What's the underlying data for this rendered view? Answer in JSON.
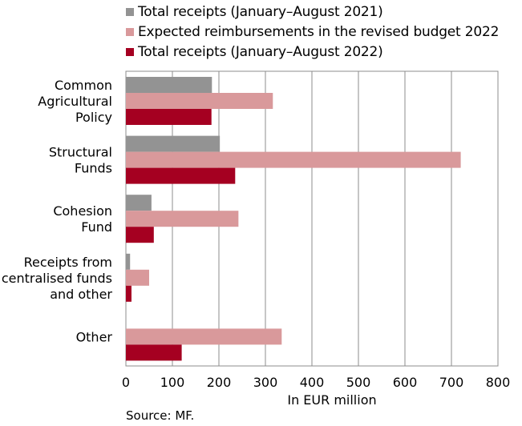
{
  "chart_data": {
    "type": "bar",
    "orientation": "horizontal",
    "categories": [
      [
        "Common",
        "Agricultural",
        "Policy"
      ],
      [
        "Structural",
        "Funds"
      ],
      [
        "Cohesion",
        "Fund"
      ],
      [
        "Receipts from",
        "centralised funds",
        "and other"
      ],
      [
        "Other"
      ]
    ],
    "series": [
      {
        "name": "Total receipts (January–August 2021)",
        "color": "#939393",
        "values": [
          185,
          202,
          55,
          9,
          0
        ]
      },
      {
        "name": "Expected reimbursements in the revised budget  2022",
        "color": "#d9999b",
        "values": [
          316,
          720,
          242,
          50,
          335
        ]
      },
      {
        "name": "Total receipts (January–August 2022)",
        "color": "#a50021",
        "values": [
          184,
          235,
          60,
          12,
          120
        ]
      }
    ],
    "xlim": [
      0,
      800
    ],
    "xticks": [
      0,
      100,
      200,
      300,
      400,
      500,
      600,
      700,
      800
    ],
    "xlabel": "In EUR million",
    "legend_position": "top",
    "grid": true
  },
  "source": "Source: MF."
}
